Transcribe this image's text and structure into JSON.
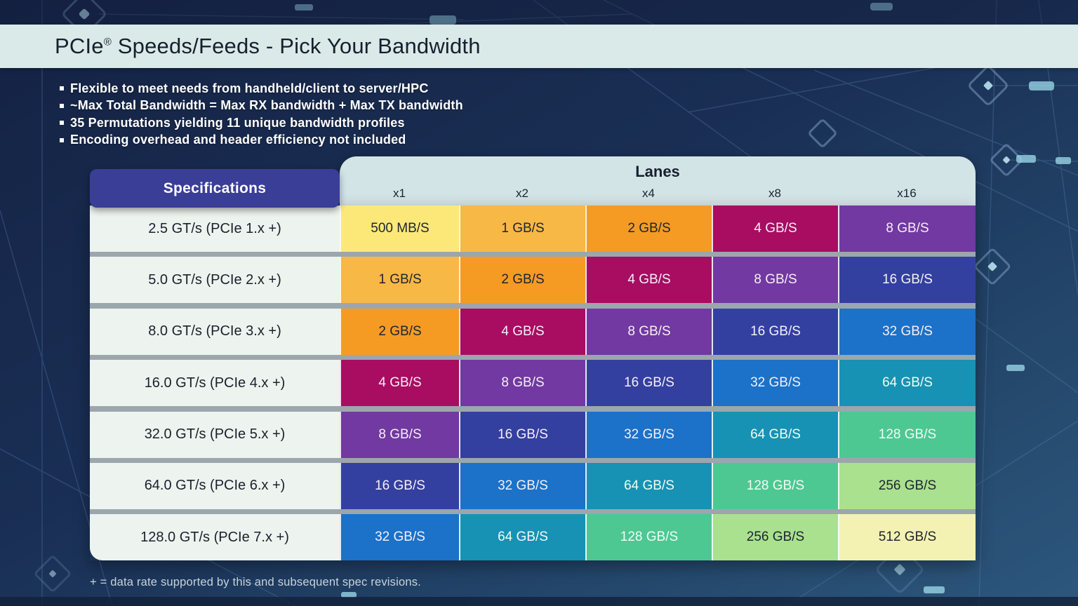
{
  "title": {
    "prefix": "PCIe",
    "reg": "®",
    "rest": " Speeds/Feeds - Pick Your Bandwidth"
  },
  "bullets": [
    "Flexible to meet needs from handheld/client to server/HPC",
    "~Max Total Bandwidth = Max RX bandwidth + Max TX bandwidth",
    "35 Permutations yielding 11 unique bandwidth profiles",
    "Encoding overhead and header efficiency not included"
  ],
  "table": {
    "spec_header": "Specifications",
    "lanes_header": "Lanes",
    "lane_columns": [
      "x1",
      "x2",
      "x4",
      "x8",
      "x16"
    ],
    "rows": [
      {
        "spec": "2.5 GT/s (PCIe 1.x +)",
        "values": [
          "500 MB/S",
          "1 GB/S",
          "2 GB/S",
          "4 GB/S",
          "8 GB/S"
        ]
      },
      {
        "spec": "5.0 GT/s (PCIe 2.x +)",
        "values": [
          "1 GB/S",
          "2 GB/S",
          "4 GB/S",
          "8 GB/S",
          "16 GB/S"
        ]
      },
      {
        "spec": "8.0 GT/s (PCIe 3.x +)",
        "values": [
          "2 GB/S",
          "4 GB/S",
          "8 GB/S",
          "16 GB/S",
          "32 GB/S"
        ]
      },
      {
        "spec": "16.0 GT/s (PCIe 4.x +)",
        "values": [
          "4 GB/S",
          "8 GB/S",
          "16 GB/S",
          "32 GB/S",
          "64 GB/S"
        ]
      },
      {
        "spec": "32.0 GT/s (PCIe 5.x +)",
        "values": [
          "8 GB/S",
          "16 GB/S",
          "32 GB/S",
          "64 GB/S",
          "128 GB/S"
        ]
      },
      {
        "spec": "64.0 GT/s (PCIe 6.x +)",
        "values": [
          "16 GB/S",
          "32 GB/S",
          "64 GB/S",
          "128 GB/S",
          "256 GB/S"
        ]
      },
      {
        "spec": "128.0 GT/s (PCIe 7.x +)",
        "values": [
          "32 GB/S",
          "64 GB/S",
          "128 GB/S",
          "256 GB/S",
          "512 GB/S"
        ]
      }
    ]
  },
  "footnote": "+ = data rate supported by this and subsequent spec revisions.",
  "colors": {
    "title_band_bg": "#D9EAE9",
    "lanes_panel_bg": "#D3E4E6",
    "spec_header_bg": "#3A3E97",
    "spec_cell_bg": "#EDF3EE",
    "row_separator": "#9CA6AD",
    "cells": {
      "500 MB/S": {
        "bg": "#FBE878",
        "fg": "#1E2430"
      },
      "1 GB/S": {
        "bg": "#F8B845",
        "fg": "#1E2430"
      },
      "2 GB/S": {
        "bg": "#F59B23",
        "fg": "#1E2430"
      },
      "4 GB/S": {
        "bg": "#A80D62",
        "fg": "#F7EFF7"
      },
      "8 GB/S": {
        "bg": "#7139A1",
        "fg": "#F7EFF7"
      },
      "16 GB/S": {
        "bg": "#3340A0",
        "fg": "#F7EFF7"
      },
      "32 GB/S": {
        "bg": "#1B72C8",
        "fg": "#F7EFF7"
      },
      "64 GB/S": {
        "bg": "#1792B5",
        "fg": "#F2FBF4"
      },
      "128 GB/S": {
        "bg": "#4DC893",
        "fg": "#F2FBF4"
      },
      "256 GB/S": {
        "bg": "#A9E18E",
        "fg": "#1E2430"
      },
      "512 GB/S": {
        "bg": "#F4F2B2",
        "fg": "#1E2430"
      }
    }
  }
}
